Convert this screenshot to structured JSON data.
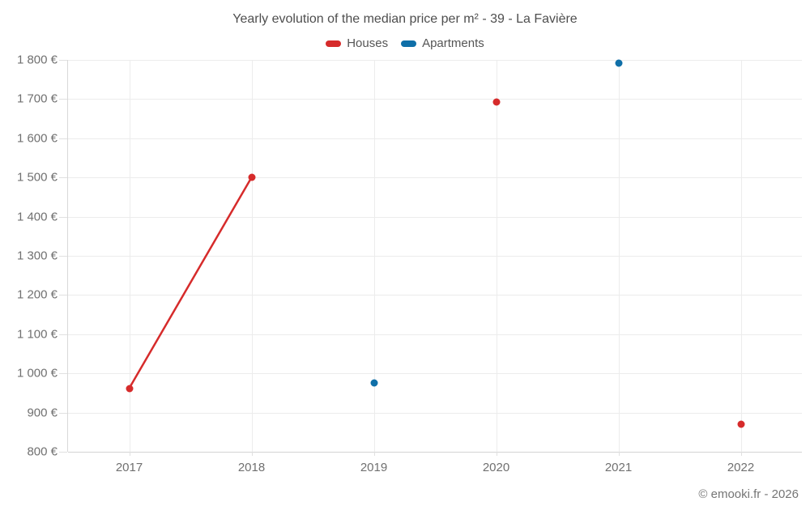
{
  "header": {
    "title": "Yearly evolution of the median price per m² - 39 - La Favière"
  },
  "legend": [
    {
      "label": "Houses",
      "color": "#d62b2b"
    },
    {
      "label": "Apartments",
      "color": "#0f6fa8"
    }
  ],
  "footer": {
    "credit": "© emooki.fr - 2026"
  },
  "chart_data": {
    "type": "line",
    "title": "Yearly evolution of the median price per m² - 39 - La Favière",
    "categories": [
      "2017",
      "2018",
      "2019",
      "2020",
      "2021",
      "2022"
    ],
    "series": [
      {
        "name": "Houses",
        "color": "#d62b2b",
        "values": [
          962,
          1500,
          null,
          1693,
          null,
          870
        ]
      },
      {
        "name": "Apartments",
        "color": "#0f6fa8",
        "values": [
          null,
          null,
          975,
          null,
          1792,
          null
        ]
      }
    ],
    "xlabel": "",
    "ylabel": "",
    "ylabel_format": "{value} €",
    "ylim": [
      800,
      1800
    ],
    "ytick_step": 100,
    "grid": true,
    "legend_position": "top",
    "marker_radius": 4.5,
    "line_width": 2.5
  }
}
